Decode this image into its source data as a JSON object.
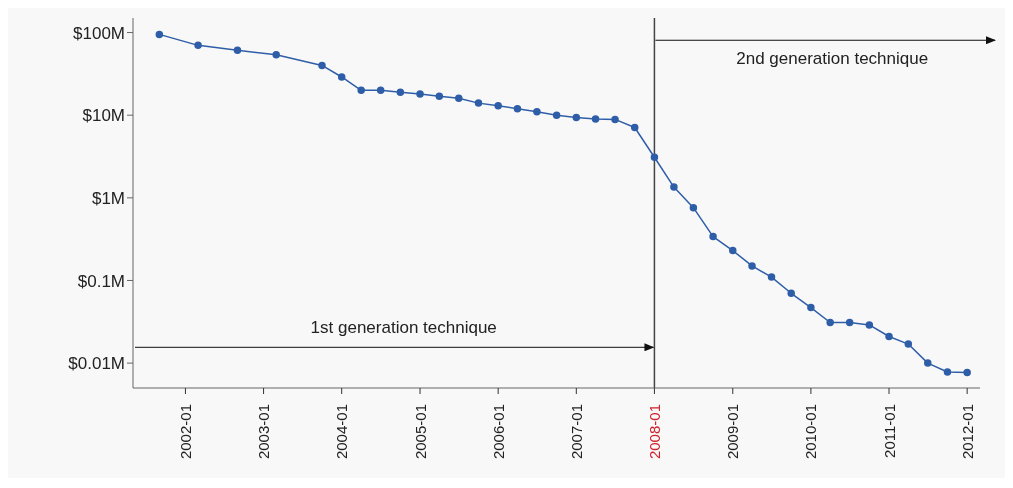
{
  "chart_data": {
    "type": "line",
    "x": [
      "2001-09",
      "2002-03",
      "2002-09",
      "2003-03",
      "2003-10",
      "2004-01",
      "2004-04",
      "2004-07",
      "2004-10",
      "2005-01",
      "2005-04",
      "2005-07",
      "2005-10",
      "2006-01",
      "2006-04",
      "2006-07",
      "2006-10",
      "2007-01",
      "2007-04",
      "2007-07",
      "2007-10",
      "2008-01",
      "2008-04",
      "2008-07",
      "2008-10",
      "2009-01",
      "2009-04",
      "2009-07",
      "2009-10",
      "2010-01",
      "2010-04",
      "2010-07",
      "2010-10",
      "2011-01",
      "2011-04",
      "2011-07",
      "2011-10",
      "2012-01"
    ],
    "series": [
      {
        "color": "#2f5ea8",
        "values": [
          95,
          70,
          61,
          54,
          40,
          29,
          20,
          20,
          19,
          18,
          17,
          16,
          14,
          13,
          12,
          11,
          10,
          9.4,
          9.0,
          8.9,
          7.1,
          3.1,
          1.35,
          0.76,
          0.34,
          0.23,
          0.15,
          0.11,
          0.07,
          0.047,
          0.031,
          0.031,
          0.029,
          0.021,
          0.017,
          0.01,
          0.0078,
          0.0077
        ]
      }
    ],
    "log": "y",
    "ylim": [
      0.005,
      150
    ],
    "yticks": [
      {
        "value": 0.01,
        "label": "$0.01M"
      },
      {
        "value": 0.1,
        "label": "$0.1M"
      },
      {
        "value": 1,
        "label": "$1M"
      },
      {
        "value": 10,
        "label": "$10M"
      },
      {
        "value": 100,
        "label": "$100M"
      }
    ],
    "xlim": [
      "2001-05",
      "2012-03"
    ],
    "xticks": [
      "2002-01",
      "2003-01",
      "2004-01",
      "2005-01",
      "2006-01",
      "2007-01",
      "2008-01",
      "2009-01",
      "2010-01",
      "2011-01",
      "2012-01"
    ],
    "ref_lines": [
      {
        "axis": "x",
        "value": "2008-01",
        "color": "#444444"
      }
    ],
    "annotations": [
      "1st generation technique",
      "2nd generation technique"
    ],
    "marker": "circle",
    "line_style": "solid",
    "grid": false
  }
}
